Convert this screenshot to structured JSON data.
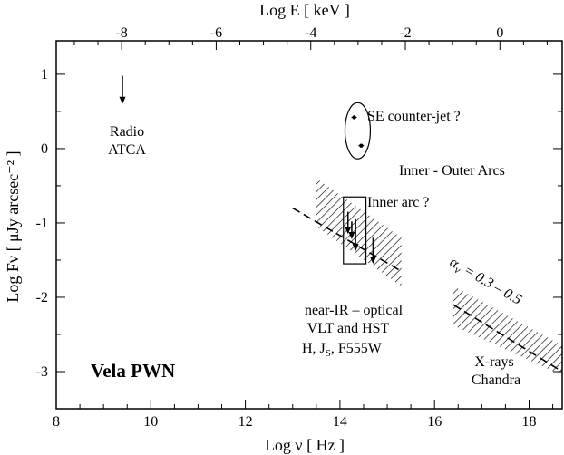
{
  "chart_data": {
    "type": "scatter",
    "title": "",
    "xlabel": "Log ν [ Hz ]",
    "ylabel": "Log Fν [ μJy arcsec⁻² ]",
    "x2label": "Log E [ keV ]",
    "xlim": [
      8.0,
      18.7
    ],
    "ylim": [
      -3.5,
      1.45
    ],
    "x_ticks": [
      "8",
      "10",
      "12",
      "14",
      "16",
      "18"
    ],
    "y_ticks": [
      "1",
      "0",
      "-1",
      "-2",
      "-3"
    ],
    "x2_ticks": [
      "-8",
      "-6",
      "-4",
      "-2",
      "0"
    ],
    "grid": false,
    "series": [
      {
        "name": "Radio ATCA",
        "kind": "upper_limit",
        "points": [
          {
            "x": 9.4,
            "y": 0.98,
            "y_limit": 0.6
          }
        ]
      },
      {
        "name": "SE counter-jet ?",
        "kind": "points",
        "points": [
          {
            "x": 14.3,
            "y": 0.42
          },
          {
            "x": 14.45,
            "y": 0.04
          }
        ]
      },
      {
        "name": "Inner arc ?",
        "kind": "upper_limits",
        "points": [
          {
            "x": 14.17,
            "y": -0.85,
            "y_limit": -1.15
          },
          {
            "x": 14.25,
            "y": -0.98,
            "y_limit": -1.22
          },
          {
            "x": 14.33,
            "y": -0.95,
            "y_limit": -1.38
          },
          {
            "x": 14.7,
            "y": -1.2,
            "y_limit": -1.55
          }
        ]
      },
      {
        "name": "near-IR – optical VLT and HST",
        "kind": "power_law",
        "line": [
          [
            13.0,
            -0.8
          ],
          [
            15.3,
            -1.65
          ]
        ],
        "band": [
          [
            13.5,
            -0.4
          ],
          [
            15.3,
            -1.2
          ],
          [
            15.3,
            -1.85
          ],
          [
            13.5,
            -1.05
          ]
        ]
      },
      {
        "name": "X-rays Chandra",
        "kind": "power_law",
        "line": [
          [
            16.4,
            -2.1
          ],
          [
            18.7,
            -3.0
          ]
        ],
        "band": [
          [
            16.4,
            -1.85
          ],
          [
            18.7,
            -2.65
          ],
          [
            18.7,
            -3.05
          ],
          [
            16.4,
            -2.38
          ]
        ]
      }
    ],
    "annotations": {
      "radio_line1": "Radio",
      "radio_line2": "ATCA",
      "counter_jet": "SE counter-jet ?",
      "inner_outer": "Inner - Outer Arcs",
      "inner_arc": "Inner arc ?",
      "alpha_main": "α",
      "alpha_sub": "ν",
      "alpha_value": " = 0.3 – 0.5",
      "optical_line1": "near-IR – optical",
      "optical_line2": "VLT and  HST",
      "optical_filters_pre": "H,  J",
      "optical_filters_sub": "S",
      "optical_filters_post": ",  F555W",
      "xray_line1": "X-rays",
      "xray_line2": "Chandra",
      "object": "Vela PWN"
    }
  }
}
